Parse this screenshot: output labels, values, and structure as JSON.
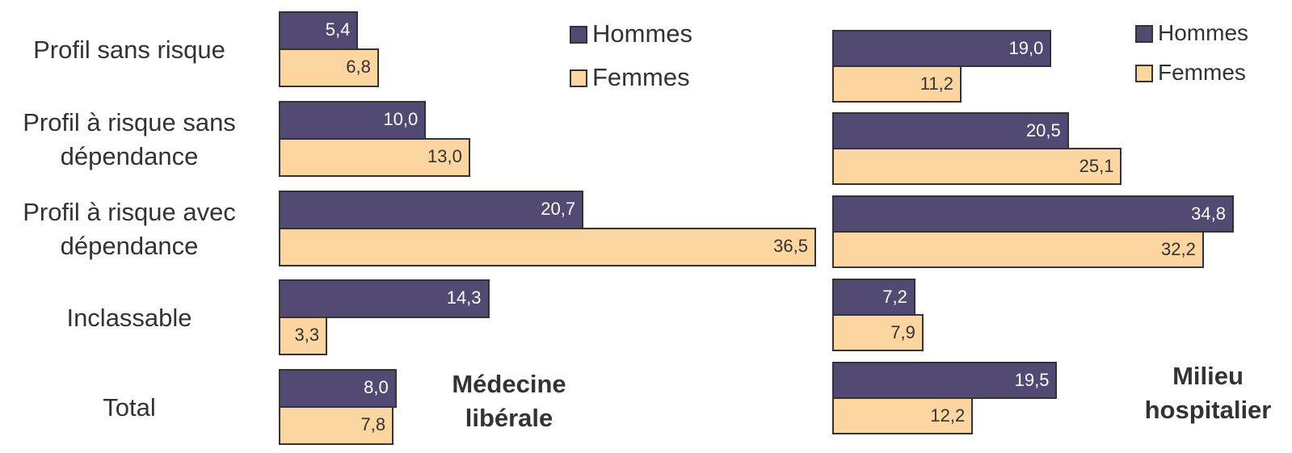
{
  "chart_data": [
    {
      "type": "barh",
      "title": "Médecine\nlibérale",
      "categories": [
        "Profil sans risque",
        "Profil à risque sans\ndépendance",
        "Profil à risque avec\ndépendance",
        "Inclassable",
        "Total"
      ],
      "series": [
        {
          "name": "Hommes",
          "color": "#524a72",
          "values": [
            5.4,
            10.0,
            20.7,
            14.3,
            8.0
          ],
          "value_labels": [
            "5,4",
            "10,0",
            "20,7",
            "14,3",
            "8,0"
          ]
        },
        {
          "name": "Femmes",
          "color": "#fcd5a0",
          "values": [
            6.8,
            13.0,
            36.5,
            3.3,
            7.8
          ],
          "value_labels": [
            "6,8",
            "13,0",
            "36,5",
            "3,3",
            "7,8"
          ]
        }
      ]
    },
    {
      "type": "barh",
      "title": "Milieu\nhospitalier",
      "series": [
        {
          "name": "Hommes",
          "color": "#524a72",
          "values": [
            19.0,
            20.5,
            34.8,
            7.2,
            19.5
          ],
          "value_labels": [
            "19,0",
            "20,5",
            "34,8",
            "7,2",
            "19,5"
          ]
        },
        {
          "name": "Femmes",
          "color": "#fcd5a0",
          "values": [
            11.2,
            25.1,
            32.2,
            7.9,
            12.2
          ],
          "value_labels": [
            "11,2",
            "25,1",
            "32,2",
            "7,9",
            "12,2"
          ]
        }
      ]
    }
  ]
}
